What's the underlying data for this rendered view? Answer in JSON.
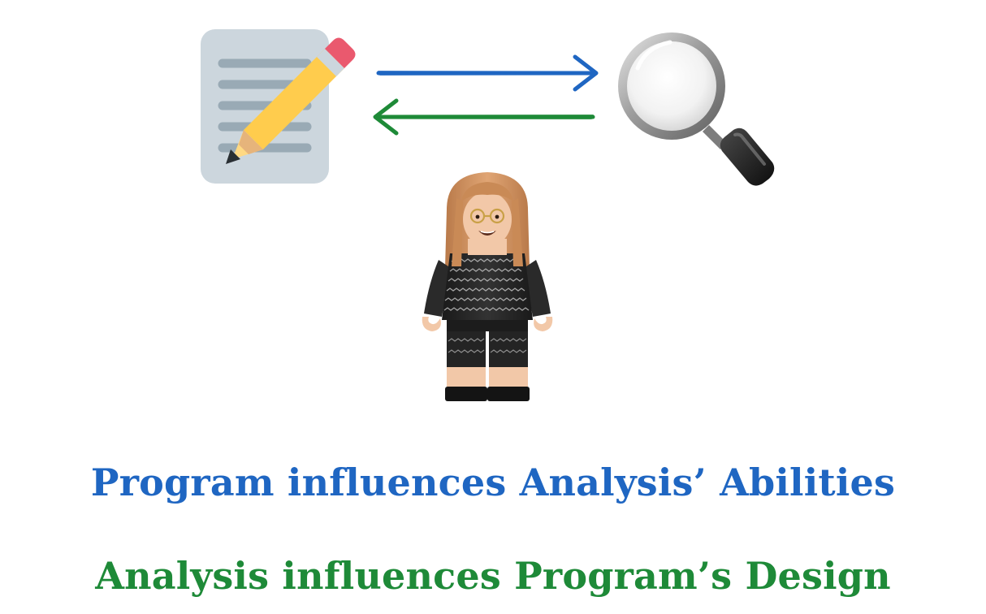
{
  "colors": {
    "forward_arrow": "#1f66c2",
    "backward_arrow": "#1e8a38",
    "caption_top": "#1f66c2",
    "caption_bottom": "#1e8a38",
    "background": "#ffffff"
  },
  "icons": {
    "left": "memo-pencil-icon",
    "right": "magnifying-glass-icon",
    "center": "minifigure-person-icon"
  },
  "captions": {
    "top": "Program influences Analysis’ Abilities",
    "bottom": "Analysis influences Program’s Design"
  }
}
